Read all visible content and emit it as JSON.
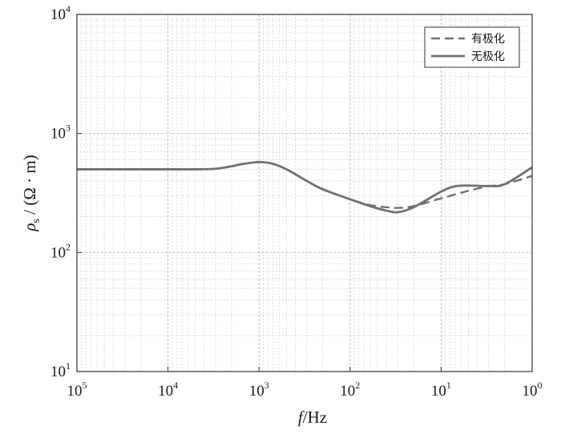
{
  "chart_data": {
    "type": "line",
    "title": "",
    "xlabel": "f/Hz",
    "ylabel": "ρs / (Ω·m)",
    "x_scale": "log",
    "y_scale": "log",
    "x_reversed": true,
    "xlim": [
      100000,
      1
    ],
    "ylim": [
      10,
      10000
    ],
    "grid": true,
    "legend_position": "top-right",
    "x_ticks": [
      {
        "base": "10",
        "exp": "5",
        "value": 100000
      },
      {
        "base": "10",
        "exp": "4",
        "value": 10000
      },
      {
        "base": "10",
        "exp": "3",
        "value": 1000
      },
      {
        "base": "10",
        "exp": "2",
        "value": 100
      },
      {
        "base": "10",
        "exp": "1",
        "value": 10
      },
      {
        "base": "10",
        "exp": "0",
        "value": 1
      }
    ],
    "y_ticks": [
      {
        "base": "10",
        "exp": "1",
        "value": 10
      },
      {
        "base": "10",
        "exp": "2",
        "value": 100
      },
      {
        "base": "10",
        "exp": "3",
        "value": 1000
      },
      {
        "base": "10",
        "exp": "4",
        "value": 10000
      }
    ],
    "series": [
      {
        "name": "有极化",
        "style": "dashed",
        "color": "#707070",
        "x": [
          100000,
          30000,
          10000,
          5000,
          3000,
          2000,
          1500,
          1000,
          700,
          500,
          300,
          200,
          100,
          60,
          40,
          30,
          20,
          10,
          5,
          3,
          2,
          1
        ],
        "y": [
          500,
          500,
          500,
          500,
          505,
          530,
          555,
          575,
          555,
          500,
          400,
          340,
          280,
          250,
          240,
          237,
          245,
          285,
          330,
          360,
          375,
          440
        ]
      },
      {
        "name": "无极化",
        "style": "solid",
        "color": "#707070",
        "x": [
          100000,
          30000,
          10000,
          5000,
          3000,
          2000,
          1500,
          1000,
          700,
          500,
          300,
          200,
          100,
          60,
          40,
          30,
          20,
          10,
          7,
          5,
          3,
          2,
          1
        ],
        "y": [
          500,
          500,
          500,
          500,
          505,
          530,
          555,
          575,
          555,
          500,
          400,
          340,
          280,
          245,
          225,
          218,
          240,
          325,
          360,
          365,
          362,
          375,
          520
        ]
      }
    ]
  }
}
